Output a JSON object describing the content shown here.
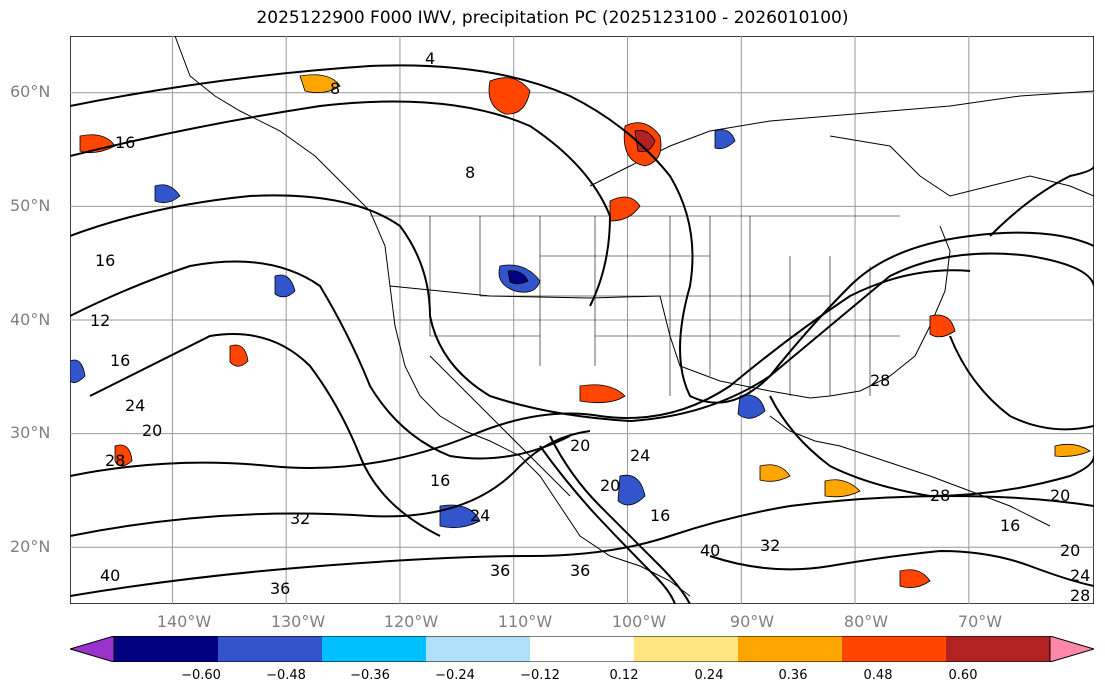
{
  "title": "2025122900 F000 IWV, precipitation PC (2025123100 - 2026010100)",
  "map": {
    "lon_range": [
      -149,
      -59
    ],
    "lat_range": [
      15,
      65
    ],
    "lat_labels": [
      "60°N",
      "50°N",
      "40°N",
      "30°N",
      "20°N"
    ],
    "lon_labels": [
      "140°W",
      "130°W",
      "120°W",
      "110°W",
      "100°W",
      "90°W",
      "80°W",
      "70°W"
    ],
    "contour_labels": [
      "4",
      "8",
      "8",
      "16",
      "16",
      "12",
      "16",
      "20",
      "24",
      "28",
      "32",
      "36",
      "40",
      "16",
      "24",
      "28",
      "20",
      "16",
      "20",
      "24",
      "28",
      "32",
      "40",
      "36",
      "36",
      "28",
      "24",
      "20",
      "20",
      "16"
    ]
  },
  "colorbar": {
    "ticks": [
      "−0.60",
      "−0.48",
      "−0.36",
      "−0.24",
      "−0.12",
      "0.12",
      "0.24",
      "0.36",
      "0.48",
      "0.60"
    ],
    "colors": [
      "#9933cc",
      "#000080",
      "#3355cc",
      "#00bfff",
      "#aee0fa",
      "#ffffff",
      "#ffe680",
      "#ffa500",
      "#ff4500",
      "#b22222",
      "#ff88aa"
    ]
  }
}
